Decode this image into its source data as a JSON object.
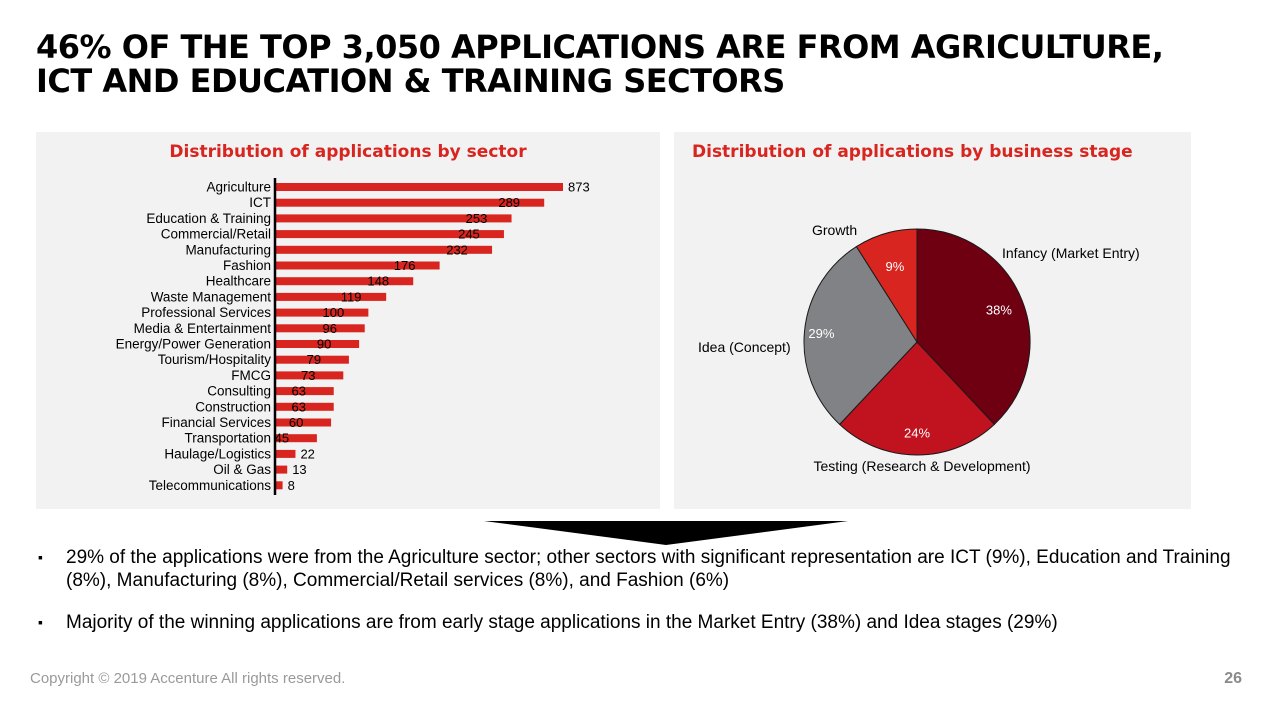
{
  "title": {
    "line1": "46% of the top 3,050 applications are from Agriculture,",
    "line2": "ICT and Education & Training sectors"
  },
  "colors": {
    "accent_red": "#d8251f",
    "panel_bg": "#f2f2f2",
    "pie_infancy": "#6e0012",
    "pie_testing": "#c0121f",
    "pie_idea": "#808285",
    "pie_growth": "#d8251f"
  },
  "chart_data": [
    {
      "type": "bar",
      "orientation": "horizontal",
      "title": "Distribution of applications by sector",
      "categories": [
        "Agriculture",
        "ICT",
        "Education & Training",
        "Commercial/Retail",
        "Manufacturing",
        "Fashion",
        "Healthcare",
        "Waste Management",
        "Professional Services",
        "Media & Entertainment",
        "Energy/Power Generation",
        "Tourism/Hospitality",
        "FMCG",
        "Consulting",
        "Construction",
        "Financial Services",
        "Transportation",
        "Haulage/Logistics",
        "Oil & Gas",
        "Telecommunications"
      ],
      "values": [
        873,
        289,
        253,
        245,
        232,
        176,
        148,
        119,
        100,
        96,
        90,
        79,
        73,
        63,
        63,
        60,
        45,
        22,
        13,
        8
      ],
      "labels": [
        "873",
        "289",
        "253",
        "245",
        "232",
        "176",
        "148",
        "119",
        "100",
        "96",
        "90",
        "79",
        "73",
        "63",
        "63",
        "60",
        "45",
        "22",
        "13",
        "8"
      ],
      "bar_values": [
        873,
        816,
        717,
        694,
        658,
        499,
        419,
        337,
        283,
        272,
        255,
        224,
        207,
        178,
        178,
        170,
        127,
        62,
        37,
        23
      ]
    },
    {
      "type": "pie",
      "title": "Distribution of applications by business stage",
      "categories": [
        "Infancy (Market Entry)",
        "Testing (Research & Development)",
        "Idea (Concept)",
        "Growth"
      ],
      "values": [
        38,
        24,
        29,
        9
      ],
      "labels": [
        "38%",
        "24%",
        "29%",
        "9%"
      ]
    }
  ],
  "bullets": [
    "29% of the applications were from the Agriculture sector; other sectors with significant representation are ICT (9%), Education and Training (8%), Manufacturing (8%), Commercial/Retail services (8%), and Fashion (6%)",
    "Majority of the winning applications are from early stage applications in the Market Entry (38%)  and Idea stages (29%)"
  ],
  "bullet_mark": "▪",
  "footer": "Copyright © 2019 Accenture  All rights reserved.",
  "page_number": "26"
}
